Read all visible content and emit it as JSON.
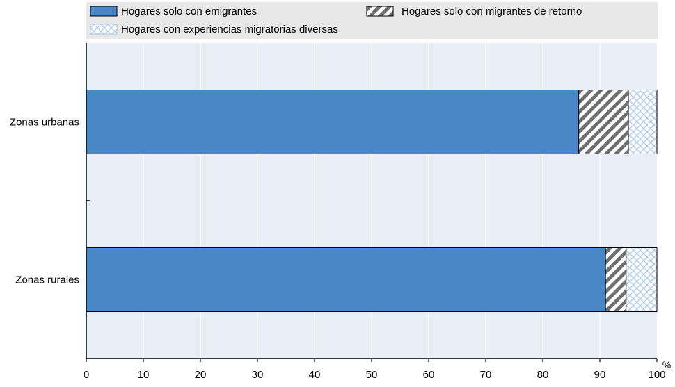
{
  "colors": {
    "emigrantes": "#4a86c5",
    "retorno_hatch": "#6f6f6f",
    "diversas_hatch": "#a8c8e8",
    "plot_background": "#e9edf6",
    "legend_background": "#e8e8e8",
    "gridline": "#ffffff"
  },
  "chart_data": {
    "type": "bar",
    "orientation": "horizontal",
    "stacked": true,
    "categories": [
      "Zonas urbanas",
      "Zonas rurales"
    ],
    "series": [
      {
        "name": "Hogares solo con emigrantes",
        "values": [
          86.3,
          91.0
        ],
        "pattern": "solid"
      },
      {
        "name": "Hogares solo con migrantes de retorno",
        "values": [
          8.7,
          3.6
        ],
        "pattern": "diagonal-stripes"
      },
      {
        "name": "Hogares con experiencias migratorias diversas",
        "values": [
          5.0,
          5.4
        ],
        "pattern": "crosshatch"
      }
    ],
    "xlim": [
      0,
      100
    ],
    "xticks": [
      "0",
      "10",
      "20",
      "30",
      "40",
      "50",
      "60",
      "70",
      "80",
      "90",
      "100"
    ],
    "unit": "%",
    "grid": true,
    "legend_position": "top"
  }
}
